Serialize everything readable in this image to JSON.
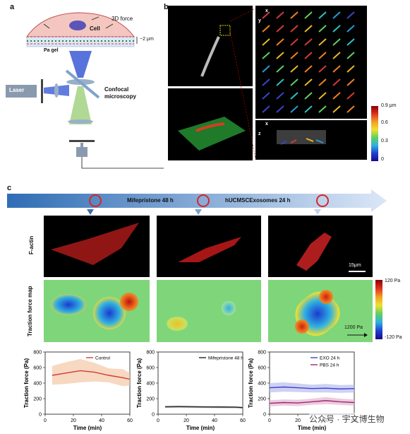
{
  "panels": {
    "a": "a",
    "b": "b",
    "c": "c"
  },
  "schematic": {
    "force": "3D force",
    "cell": "Cell",
    "thickness": "~2 μm",
    "gel": "Pa gel",
    "laser": "Laser",
    "microscopy_line1": "Confocal",
    "microscopy_line2": "microscopy"
  },
  "panel_b": {
    "axis_x": "x",
    "axis_y": "y",
    "axis_z": "z",
    "colorbar_title": "0.9 μm",
    "colorbar_ticks": [
      "0.6",
      "0.3",
      "0"
    ]
  },
  "timeline": {
    "stage1": "Mifepristone 48 h",
    "stage2": "hUCMSCExosomes 24 h"
  },
  "rows": {
    "factin": "F-actin",
    "traction": "Traction force map"
  },
  "scale_bar": "15μm",
  "traction_colorbar": {
    "max": "120 Pa",
    "min": "-120 Pa"
  },
  "arrow_scale": "1200 Pa",
  "charts_common": {
    "ylabel": "Traction force (Pa)",
    "xlabel": "Time (min)",
    "xticks": [
      "0",
      "20",
      "40",
      "60"
    ],
    "yticks": [
      "0",
      "200",
      "400",
      "600",
      "800"
    ]
  },
  "watermark": "公众号 · 宇文博生物",
  "chart_data": [
    {
      "type": "line",
      "xlabel": "Time (min)",
      "ylabel": "Traction force (Pa)",
      "xlim": [
        0,
        60
      ],
      "ylim": [
        0,
        800
      ],
      "legend": "top-right",
      "series": [
        {
          "name": "Control",
          "color": "#d43a3a",
          "band": "#f4c7a6",
          "x": [
            5,
            15,
            25,
            35,
            45,
            55,
            60
          ],
          "y": [
            500,
            530,
            560,
            540,
            500,
            470,
            450
          ],
          "err": [
            120,
            140,
            150,
            120,
            90,
            110,
            80
          ]
        }
      ]
    },
    {
      "type": "line",
      "xlabel": "Time (min)",
      "ylabel": "Traction force (Pa)",
      "xlim": [
        0,
        60
      ],
      "ylim": [
        0,
        800
      ],
      "legend": "top-right",
      "series": [
        {
          "name": "Mifepristone 48 h",
          "color": "#222222",
          "band": "#bbbbbb",
          "x": [
            5,
            15,
            25,
            35,
            45,
            55,
            60
          ],
          "y": [
            95,
            97,
            95,
            93,
            92,
            90,
            85
          ],
          "err": [
            15,
            15,
            15,
            15,
            15,
            15,
            15
          ]
        }
      ]
    },
    {
      "type": "line",
      "xlabel": "Time (min)",
      "ylabel": "Traction force (Pa)",
      "xlim": [
        0,
        60
      ],
      "ylim": [
        0,
        800
      ],
      "legend": "top-right",
      "series": [
        {
          "name": "EXO 24 h",
          "color": "#3b44c8",
          "band": "#b9bdf0",
          "x": [
            0,
            10,
            20,
            30,
            40,
            50,
            60
          ],
          "y": [
            340,
            350,
            340,
            330,
            335,
            325,
            330
          ],
          "err": [
            60,
            60,
            55,
            50,
            55,
            50,
            50
          ]
        },
        {
          "name": "PBS 24 h",
          "color": "#9c2a6f",
          "band": "#e6b3d1",
          "x": [
            0,
            10,
            20,
            30,
            40,
            50,
            60
          ],
          "y": [
            140,
            150,
            145,
            160,
            175,
            160,
            150
          ],
          "err": [
            40,
            40,
            40,
            40,
            45,
            40,
            40
          ]
        }
      ]
    }
  ]
}
